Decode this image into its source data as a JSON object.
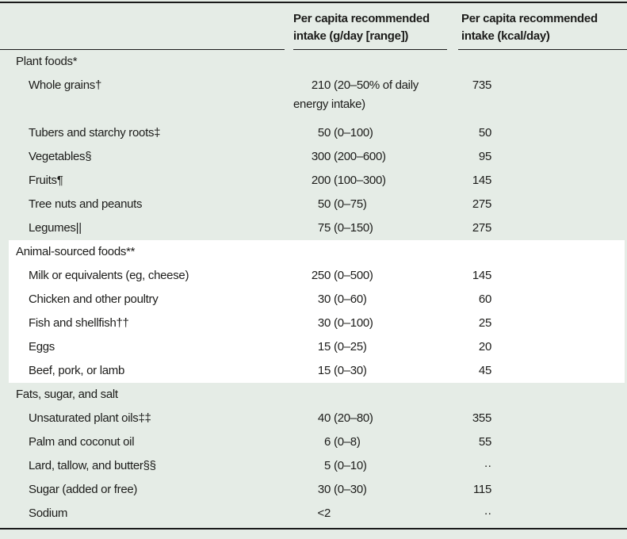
{
  "header": {
    "gday": "Per capita recommended intake (g/day [range])",
    "kcal": "Per capita recommended intake (kcal/day)"
  },
  "sections": [
    {
      "title": "Plant foods*",
      "highlight": false,
      "rows": [
        {
          "label": "Whole grains†",
          "num": "210",
          "range": "(20–50% of daily energy intake)",
          "kcal": "735"
        },
        {
          "label": "Tubers and starchy roots‡",
          "num": "50",
          "range": "(0–100)",
          "kcal": "50"
        },
        {
          "label": "Vegetables§",
          "num": "300",
          "range": "(200–600)",
          "kcal": "95"
        },
        {
          "label": "Fruits¶",
          "num": "200",
          "range": "(100–300)",
          "kcal": "145"
        },
        {
          "label": "Tree nuts and peanuts",
          "num": "50",
          "range": "(0–75)",
          "kcal": "275"
        },
        {
          "label": "Legumes||",
          "num": "75",
          "range": "(0–150)",
          "kcal": "275"
        }
      ]
    },
    {
      "title": "Animal-sourced foods**",
      "highlight": true,
      "rows": [
        {
          "label": "Milk or equivalents (eg, cheese)",
          "num": "250",
          "range": "(0–500)",
          "kcal": "145"
        },
        {
          "label": "Chicken and other poultry",
          "num": "30",
          "range": "(0–60)",
          "kcal": "60"
        },
        {
          "label": "Fish and shellfish††",
          "num": "30",
          "range": "(0–100)",
          "kcal": "25"
        },
        {
          "label": "Eggs",
          "num": "15",
          "range": "(0–25)",
          "kcal": "20"
        },
        {
          "label": "Beef, pork, or lamb",
          "num": "15",
          "range": "(0–30)",
          "kcal": "45"
        }
      ]
    },
    {
      "title": "Fats, sugar, and salt",
      "highlight": false,
      "rows": [
        {
          "label": "Unsaturated plant oils‡‡",
          "num": "40",
          "range": "(20–80)",
          "kcal": "355"
        },
        {
          "label": "Palm and coconut oil",
          "num": "6",
          "range": "(0–8)",
          "kcal": "55"
        },
        {
          "label": "Lard, tallow, and butter§§",
          "num": "5",
          "range": "(0–10)",
          "kcal": "··"
        },
        {
          "label": "Sugar (added or free)",
          "num": "30",
          "range": "(0–30)",
          "kcal": "115"
        },
        {
          "label": "Sodium",
          "num": "<2",
          "range": "",
          "kcal": "··"
        }
      ]
    }
  ],
  "colors": {
    "background": "#e5ece6",
    "highlight": "#ffffff",
    "rule": "#1a1a1a",
    "text": "#1c1c1a"
  }
}
